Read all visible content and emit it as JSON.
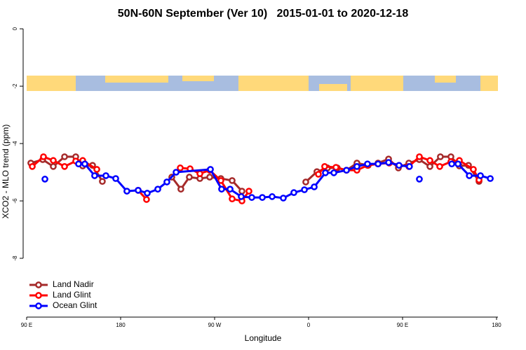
{
  "chart_data": {
    "type": "line",
    "title": "50N-60N September (Ver 10)   2015-01-01 to 2020-12-18",
    "x_label": "Longitude",
    "y_label": "XCO2 - MLO trend (ppm)",
    "xlim": [
      90,
      540
    ],
    "ylim": [
      -10.05,
      0.15
    ],
    "xticks": [
      {
        "value": 90,
        "label": "90 E"
      },
      {
        "value": 180,
        "label": "180"
      },
      {
        "value": 270,
        "label": "90 W"
      },
      {
        "value": 360,
        "label": "0"
      },
      {
        "value": 450,
        "label": "90 E"
      },
      {
        "value": 540,
        "label": "180"
      }
    ],
    "yticks": [
      0,
      -2,
      -4,
      -6,
      -8
    ],
    "legend": "bottom-left",
    "series": [
      {
        "name": "Land Nadir",
        "color": "#a52a2a",
        "x": [
          94.0,
          105.4,
          115.5,
          126.3,
          137.0,
          143.7,
          153.1,
          162.5,
          null,
          229.0,
          237.7,
          245.8,
          255.9,
          265.3,
          276.0,
          286.8,
          296.2,
          null,
          357.3,
          368.0,
          378.1,
          387.5,
          396.3,
          406.3,
          417.1,
          426.5,
          436.6,
          446.0,
          456.0,
          466.1,
          476.2,
          486.2,
          496.3,
          504.4,
          513.1,
          523.2
        ],
        "values": [
          -4.68,
          -4.56,
          -4.8,
          -4.46,
          -4.46,
          -4.78,
          -4.76,
          -5.32,
          null,
          -5.17,
          -5.59,
          -5.17,
          -5.22,
          -5.17,
          -5.22,
          -5.29,
          -5.66,
          null,
          -5.34,
          -4.98,
          -4.85,
          -4.85,
          -4.93,
          -4.68,
          -4.76,
          -4.68,
          -4.54,
          -4.85,
          -4.68,
          -4.56,
          -4.8,
          -4.46,
          -4.46,
          -4.78,
          -4.76,
          -5.32
        ]
      },
      {
        "name": "Land Glint",
        "color": "#ff0000",
        "x": [
          95.4,
          106.1,
          115.5,
          126.3,
          137.0,
          143.7,
          157.2,
          null,
          196.8,
          204.8,
          null,
          237.1,
          246.5,
          255.9,
          265.3,
          276.0,
          286.8,
          296.2,
          302.9,
          null,
          369.4,
          375.4,
          386.2,
          396.3,
          406.3,
          416.4,
          426.5,
          437.2,
          456.0,
          466.1,
          476.2,
          485.6,
          496.3,
          504.4,
          517.8,
          523.2
        ],
        "values": [
          -4.8,
          -4.46,
          -4.59,
          -4.8,
          -4.61,
          -4.59,
          -4.9,
          null,
          -5.63,
          -5.95,
          null,
          -4.85,
          -4.88,
          -5.05,
          -4.93,
          -5.29,
          -5.93,
          -6.0,
          -5.66,
          null,
          -5.07,
          -4.8,
          -4.83,
          -4.93,
          -4.93,
          -4.76,
          -4.71,
          -4.68,
          -4.8,
          -4.46,
          -4.59,
          -4.8,
          -4.63,
          -4.59,
          -4.9,
          -5.27
        ]
      },
      {
        "name": "Ocean Glint",
        "color": "#0000ff",
        "x": [
          107.5,
          null,
          139.7,
          145.7,
          155.1,
          165.9,
          175.3,
          186.0,
          196.8,
          205.5,
          215.6,
          224.3,
          233.1,
          266.0,
          276.7,
          284.8,
          295.5,
          305.6,
          315.7,
          325.1,
          335.8,
          345.9,
          356.0,
          365.4,
          376.1,
          384.2,
          396.3,
          406.3,
          416.4,
          426.5,
          436.6,
          446.6,
          456.6,
          null,
          466.1,
          null,
          497.1,
          503.1,
          513.9,
          524.6,
          534.0
        ],
        "values": [
          -5.24,
          null,
          -4.71,
          -4.71,
          -5.12,
          -5.12,
          -5.22,
          -5.66,
          -5.63,
          -5.73,
          -5.59,
          -5.34,
          -5.0,
          -4.9,
          -5.59,
          -5.59,
          -5.85,
          -5.88,
          -5.88,
          -5.85,
          -5.9,
          -5.71,
          -5.61,
          -5.51,
          -5.02,
          -5.02,
          -4.93,
          -4.8,
          -4.71,
          -4.71,
          -4.66,
          -4.76,
          -4.8,
          null,
          -5.24,
          null,
          -4.71,
          -4.71,
          -5.12,
          -5.12,
          -5.22
        ]
      }
    ]
  }
}
